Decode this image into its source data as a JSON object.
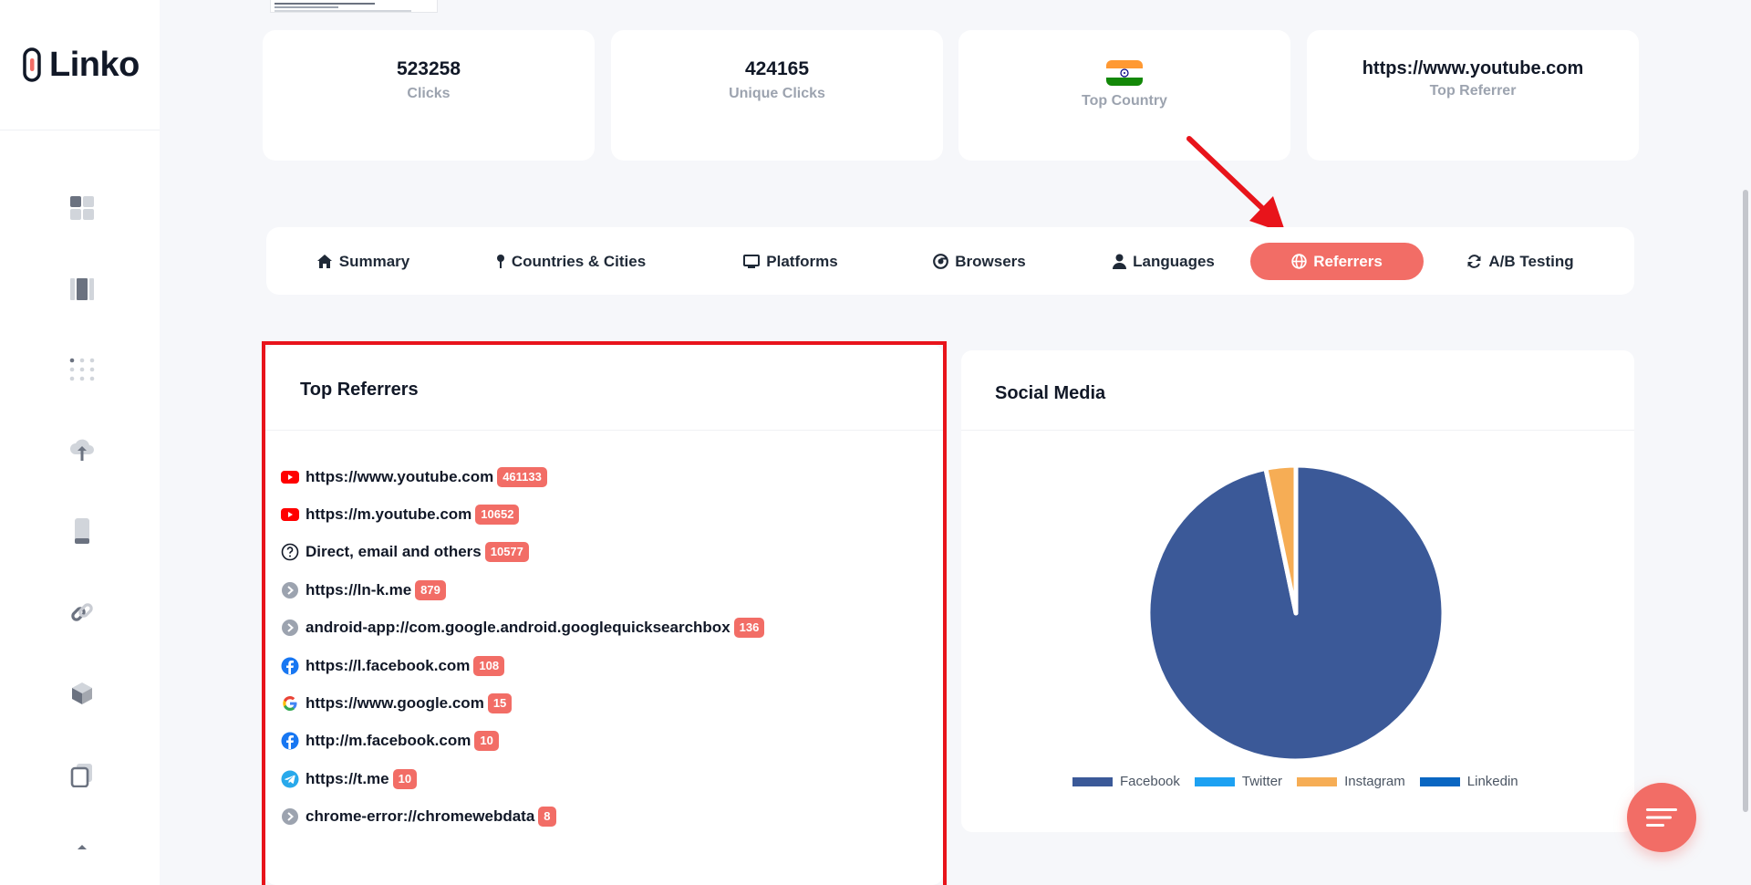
{
  "app": {
    "logo_text": "Linko"
  },
  "sidebar": {
    "icons": [
      "dashboard-icon",
      "columns-icon",
      "dots-grid-icon",
      "cloud-upload-icon",
      "mobile-icon",
      "link-icon",
      "cube-icon",
      "copy-icon",
      "chevron-up-icon"
    ]
  },
  "stats": {
    "clicks": {
      "value": "523258",
      "label": "Clicks"
    },
    "unique_clicks": {
      "value": "424165",
      "label": "Unique Clicks"
    },
    "top_country": {
      "label": "Top Country",
      "flag": "india-flag-icon"
    },
    "top_referrer": {
      "value": "https://www.youtube.com",
      "label": "Top Referrer"
    }
  },
  "tabs": [
    {
      "label": "Summary",
      "icon": "home-icon"
    },
    {
      "label": "Countries & Cities",
      "icon": "map-pin-icon"
    },
    {
      "label": "Platforms",
      "icon": "monitor-icon"
    },
    {
      "label": "Browsers",
      "icon": "chrome-icon"
    },
    {
      "label": "Languages",
      "icon": "user-icon"
    },
    {
      "label": "Referrers",
      "icon": "globe-icon",
      "active": true
    },
    {
      "label": "A/B Testing",
      "icon": "refresh-icon"
    }
  ],
  "top_referrers": {
    "title": "Top Referrers",
    "items": [
      {
        "url": "https://www.youtube.com",
        "count": "461133",
        "icon": "youtube-icon"
      },
      {
        "url": "https://m.youtube.com",
        "count": "10652",
        "icon": "youtube-icon"
      },
      {
        "url": "Direct, email and others",
        "count": "10577",
        "icon": "question-icon"
      },
      {
        "url": "https://ln-k.me",
        "count": "879",
        "icon": "chevron-right-icon"
      },
      {
        "url": "android-app://com.google.android.googlequicksearchbox",
        "count": "136",
        "icon": "chevron-right-icon"
      },
      {
        "url": "https://l.facebook.com",
        "count": "108",
        "icon": "facebook-icon"
      },
      {
        "url": "https://www.google.com",
        "count": "15",
        "icon": "google-icon"
      },
      {
        "url": "http://m.facebook.com",
        "count": "10",
        "icon": "facebook-icon"
      },
      {
        "url": "https://t.me",
        "count": "10",
        "icon": "telegram-icon"
      },
      {
        "url": "chrome-error://chromewebdata",
        "count": "8",
        "icon": "chevron-right-icon"
      }
    ]
  },
  "social_media": {
    "title": "Social Media",
    "chart_data": {
      "type": "pie",
      "categories": [
        "Facebook",
        "Twitter",
        "Instagram",
        "Linkedin"
      ],
      "values": [
        118,
        0,
        4,
        0
      ],
      "colors": [
        "#3b5998",
        "#1da1f2",
        "#f6ad55",
        "#0a66c2"
      ],
      "legend": "bottom"
    }
  },
  "colors": {
    "accent": "#f26d66",
    "annotation": "#e8141b"
  }
}
